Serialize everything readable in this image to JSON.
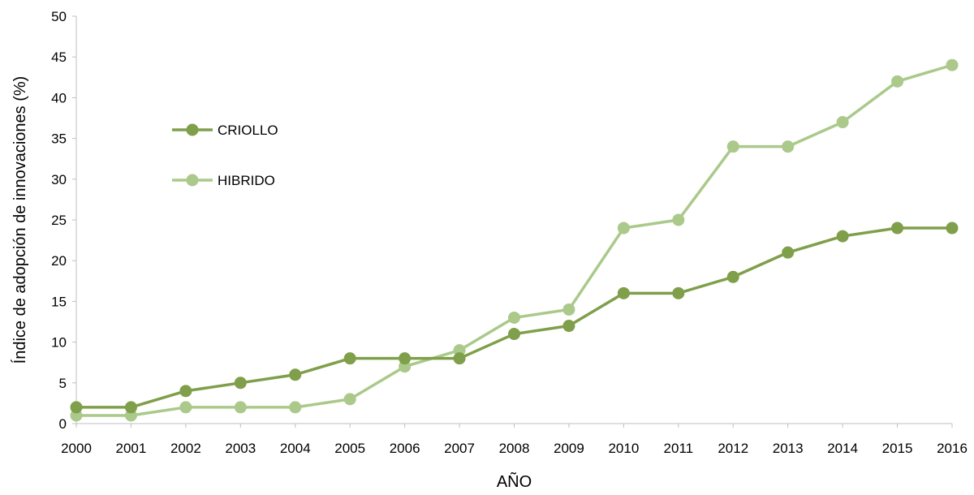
{
  "chart_data": {
    "type": "line",
    "title": "",
    "xlabel": "AÑO",
    "ylabel": "Índice de adopción de innovaciones (%)",
    "ylim": [
      0,
      50
    ],
    "yticks": [
      "0",
      "5",
      "10",
      "15",
      "20",
      "25",
      "30",
      "35",
      "40",
      "45",
      "50"
    ],
    "grid": false,
    "legend_position": "upper-left",
    "categories": [
      "2000",
      "2001",
      "2002",
      "2003",
      "2004",
      "2005",
      "2006",
      "2007",
      "2008",
      "2009",
      "2010",
      "2011",
      "2012",
      "2013",
      "2014",
      "2015",
      "2016"
    ],
    "series": [
      {
        "name": "CRIOLLO",
        "color": "#7f9f4a",
        "values": [
          2,
          2,
          4,
          5,
          6,
          8,
          8,
          8,
          11,
          12,
          16,
          16,
          18,
          21,
          23,
          24,
          24
        ]
      },
      {
        "name": "HIBRIDO",
        "color": "#aac98a",
        "values": [
          1,
          1,
          2,
          2,
          2,
          3,
          7,
          9,
          13,
          14,
          24,
          25,
          34,
          34,
          37,
          42,
          44
        ]
      }
    ]
  }
}
